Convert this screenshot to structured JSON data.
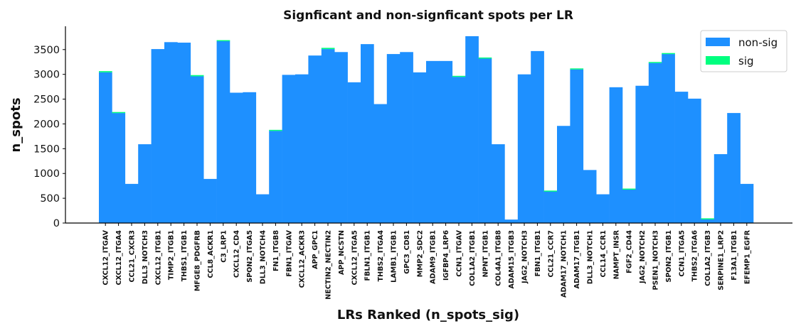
{
  "chart_data": {
    "type": "bar",
    "stacked": true,
    "title": "Signficant and non-signficant spots per LR",
    "xlabel": "LRs Ranked (n_spots_sig)",
    "ylabel": "n_spots",
    "ylim": [
      0,
      3970
    ],
    "yticks": [
      0,
      500,
      1000,
      1500,
      2000,
      2500,
      3000,
      3500
    ],
    "legend_position": "top-right",
    "grid": false,
    "categories": [
      "CXCL12_ITGAV",
      "CXCL12_ITGA4",
      "CCL21_CXCR3",
      "DLL3_NOTCH3",
      "CXCL12_ITGB1",
      "TIMP2_ITGB1",
      "THBS1_ITGB1",
      "MFGE8_PDGFRB",
      "CCL8_ACKR1",
      "C3_LRP1",
      "CXCL12_CD4",
      "SPON2_ITGA5",
      "DLL3_NOTCH4",
      "FN1_ITGB8",
      "FBN1_ITGAV",
      "CXCL12_ACKR3",
      "APP_GPC1",
      "NECTIN2_NECTIN2",
      "APP_NCSTN",
      "CXCL12_ITGA5",
      "FBLN1_ITGB1",
      "THBS2_ITGA4",
      "LAMB1_ITGB1",
      "GPC3_CD81",
      "MMP2_SDC2",
      "ADAM9_ITGB1",
      "IGFBP4_LRP6",
      "CCN1_ITGAV",
      "COL1A2_ITGB1",
      "NPNT_ITGB1",
      "COL4A1_ITGB8",
      "ADAM15_ITGB3",
      "JAG2_NOTCH3",
      "FBN1_ITGB1",
      "CCL21_CCR7",
      "ADAM17_NOTCH1",
      "ADAM17_ITGB1",
      "DLL3_NOTCH1",
      "CCL14_CCR1",
      "NAMPT_INSR",
      "FGF2_CD44",
      "JAG2_NOTCH2",
      "PSEN1_NOTCH3",
      "SPON2_ITGB1",
      "CCN1_ITGA5",
      "THBS2_ITGA6",
      "COL1A2_ITGB3",
      "SERPINE1_LRP2",
      "F13A1_ITGB1",
      "EFEMP1_EGFR"
    ],
    "series": [
      {
        "name": "non-sig",
        "color": "#1e90ff",
        "values": [
          3040,
          2220,
          790,
          1590,
          3510,
          3650,
          3640,
          2960,
          890,
          3670,
          2630,
          2640,
          580,
          1860,
          2990,
          3000,
          3380,
          3510,
          3450,
          2840,
          3610,
          2400,
          3410,
          3450,
          3040,
          3270,
          3270,
          2950,
          3770,
          3320,
          1590,
          70,
          3000,
          3470,
          640,
          1960,
          3100,
          1070,
          580,
          2740,
          680,
          2770,
          3230,
          3410,
          2650,
          2510,
          80,
          1390,
          2220,
          790
        ]
      },
      {
        "name": "sig",
        "color": "#00ff7f",
        "values": [
          25,
          20,
          0,
          0,
          0,
          0,
          0,
          25,
          0,
          20,
          0,
          0,
          0,
          20,
          0,
          0,
          0,
          25,
          0,
          0,
          0,
          0,
          0,
          0,
          0,
          0,
          0,
          20,
          0,
          20,
          0,
          0,
          0,
          0,
          15,
          0,
          20,
          0,
          0,
          0,
          15,
          0,
          20,
          20,
          0,
          0,
          15,
          0,
          0,
          0
        ]
      }
    ]
  }
}
